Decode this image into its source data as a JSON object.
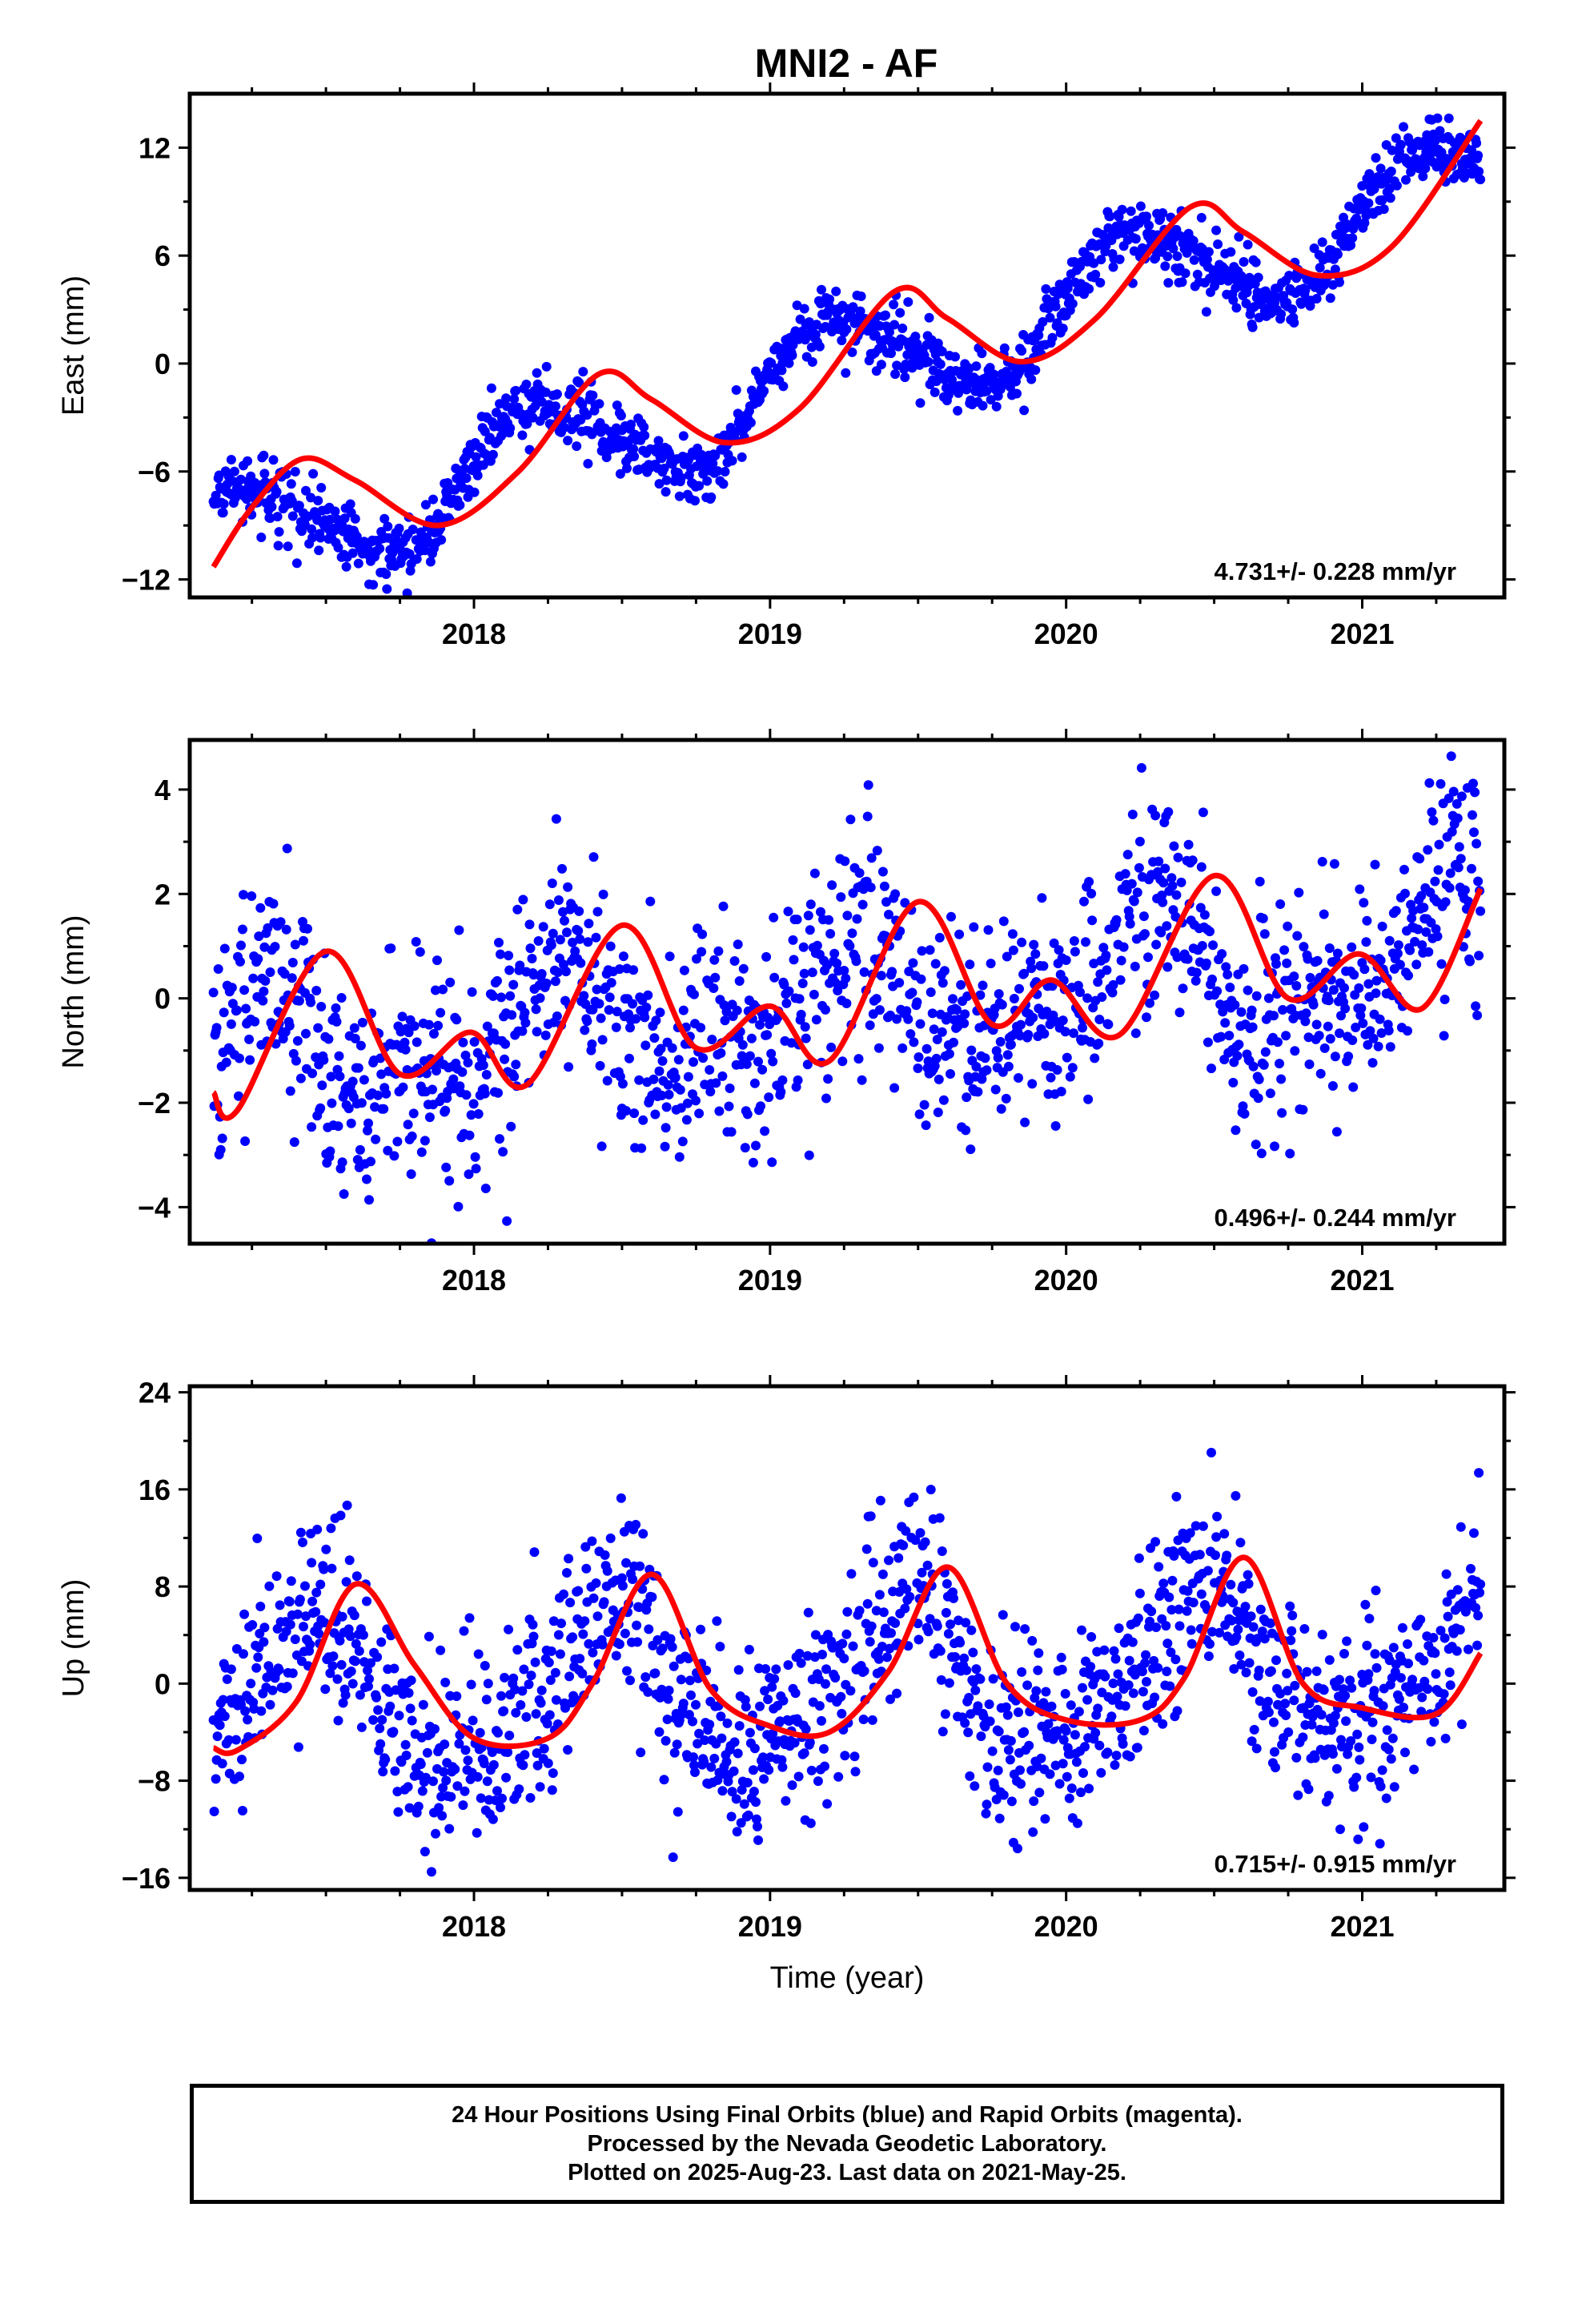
{
  "title": "MNI2 - AF",
  "colors": {
    "data_points": "#0000ff",
    "fit_line": "#ff0000",
    "axes": "#000000"
  },
  "chart_data": [
    {
      "type": "scatter",
      "ylabel": "East (mm)",
      "xlabel": "",
      "xlim": [
        2017.04,
        2021.48
      ],
      "ylim": [
        -13,
        15
      ],
      "xticks": [
        2018,
        2019,
        2020,
        2021
      ],
      "xtick_labels": [
        "2018",
        "2019",
        "2020",
        "2021"
      ],
      "yticks": [
        -12,
        -6,
        0,
        6,
        12
      ],
      "ytick_labels": [
        "−12",
        "−6",
        "0",
        "6",
        "12"
      ],
      "rate_annotation": "4.731+/- 0.228 mm/yr",
      "x_range": [
        2017.12,
        2021.4
      ],
      "trend": {
        "slope": 4.731,
        "intercept_at_2019": -1.5,
        "annual_sin": 3.0,
        "annual_cos": 0.5,
        "semiannual_sin": 0.3,
        "semiannual_cos": 0.2
      },
      "scatter_sd": 0.9,
      "fit_curve": {
        "x": [
          2017.12,
          2017.25,
          2017.42,
          2017.6,
          2017.88,
          2018.15,
          2018.42,
          2018.6,
          2018.85,
          2019.1,
          2019.42,
          2019.6,
          2019.85,
          2020.1,
          2020.42,
          2020.6,
          2020.85,
          2021.1,
          2021.4
        ],
        "y": [
          -11.3,
          -8.0,
          -5.3,
          -6.5,
          -9.0,
          -6.0,
          -0.6,
          -2.0,
          -4.4,
          -2.5,
          4.0,
          2.5,
          0.1,
          2.5,
          8.7,
          7.3,
          4.9,
          6.5,
          13.5
        ]
      }
    },
    {
      "type": "scatter",
      "ylabel": "North (mm)",
      "xlabel": "",
      "xlim": [
        2017.04,
        2021.48
      ],
      "ylim": [
        -4.7,
        4.95
      ],
      "xticks": [
        2018,
        2019,
        2020,
        2021
      ],
      "xtick_labels": [
        "2018",
        "2019",
        "2020",
        "2021"
      ],
      "yticks": [
        -4,
        -2,
        0,
        2,
        4
      ],
      "ytick_labels": [
        "−4",
        "−2",
        "0",
        "2",
        "4"
      ],
      "rate_annotation": "0.496+/- 0.244 mm/yr",
      "x_range": [
        2017.12,
        2021.4
      ],
      "trend": {
        "slope": 0.496,
        "intercept_at_2019": -0.3,
        "annual_sin": 1.0,
        "annual_cos": -0.3,
        "semiannual_sin": -0.3,
        "semiannual_cos": -0.4
      },
      "scatter_sd": 1.05,
      "fit_curve": {
        "x": [
          2017.12,
          2017.2,
          2017.5,
          2017.75,
          2017.99,
          2018.18,
          2018.5,
          2018.75,
          2019.0,
          2019.2,
          2019.5,
          2019.75,
          2019.95,
          2020.18,
          2020.5,
          2020.75,
          2020.99,
          2021.2,
          2021.4
        ],
        "y": [
          -1.8,
          -2.15,
          0.9,
          -1.45,
          -0.65,
          -1.65,
          1.4,
          -0.95,
          -0.15,
          -1.2,
          1.85,
          -0.5,
          0.35,
          -0.7,
          2.35,
          0.0,
          0.85,
          -0.2,
          2.1
        ]
      }
    },
    {
      "type": "scatter",
      "ylabel": "Up (mm)",
      "xlabel": "Time (year)",
      "xlim": [
        2017.04,
        2021.48
      ],
      "ylim": [
        -17,
        24.5
      ],
      "xticks": [
        2018,
        2019,
        2020,
        2021
      ],
      "xtick_labels": [
        "2018",
        "2019",
        "2020",
        "2021"
      ],
      "yticks": [
        -16,
        -8,
        0,
        8,
        16,
        24
      ],
      "ytick_labels": [
        "−16",
        "−8",
        "0",
        "8",
        "16",
        "24"
      ],
      "rate_annotation": "0.715+/- 0.915 mm/yr",
      "x_range": [
        2017.12,
        2021.4
      ],
      "trend": {
        "slope": 0.715,
        "intercept_at_2019": -0.3,
        "annual_sin": 2.0,
        "annual_cos": -6.0,
        "semiannual_sin": 0.0,
        "semiannual_cos": 1.5
      },
      "scatter_sd": 4.0,
      "fit_curve": {
        "x": [
          2017.12,
          2017.2,
          2017.4,
          2017.6,
          2017.8,
          2018.0,
          2018.25,
          2018.4,
          2018.6,
          2018.8,
          2019.0,
          2019.2,
          2019.4,
          2019.6,
          2019.8,
          2020.0,
          2020.25,
          2020.4,
          2020.6,
          2020.8,
          2021.0,
          2021.25,
          2021.4
        ],
        "y": [
          -5.3,
          -5.5,
          -1.5,
          8.2,
          1.5,
          -4.5,
          -4.5,
          0.0,
          9.0,
          -0.5,
          -3.5,
          -4.0,
          1.0,
          9.6,
          0.0,
          -3.0,
          -3.0,
          0.5,
          10.4,
          0.0,
          -2.0,
          -2.5,
          2.5
        ]
      }
    }
  ],
  "footer": {
    "line1": "24 Hour Positions Using Final Orbits (blue) and Rapid Orbits (magenta).",
    "line2": "Processed by the Nevada Geodetic Laboratory.",
    "line3": "Plotted on 2025-Aug-23. Last data on 2021-May-25."
  }
}
